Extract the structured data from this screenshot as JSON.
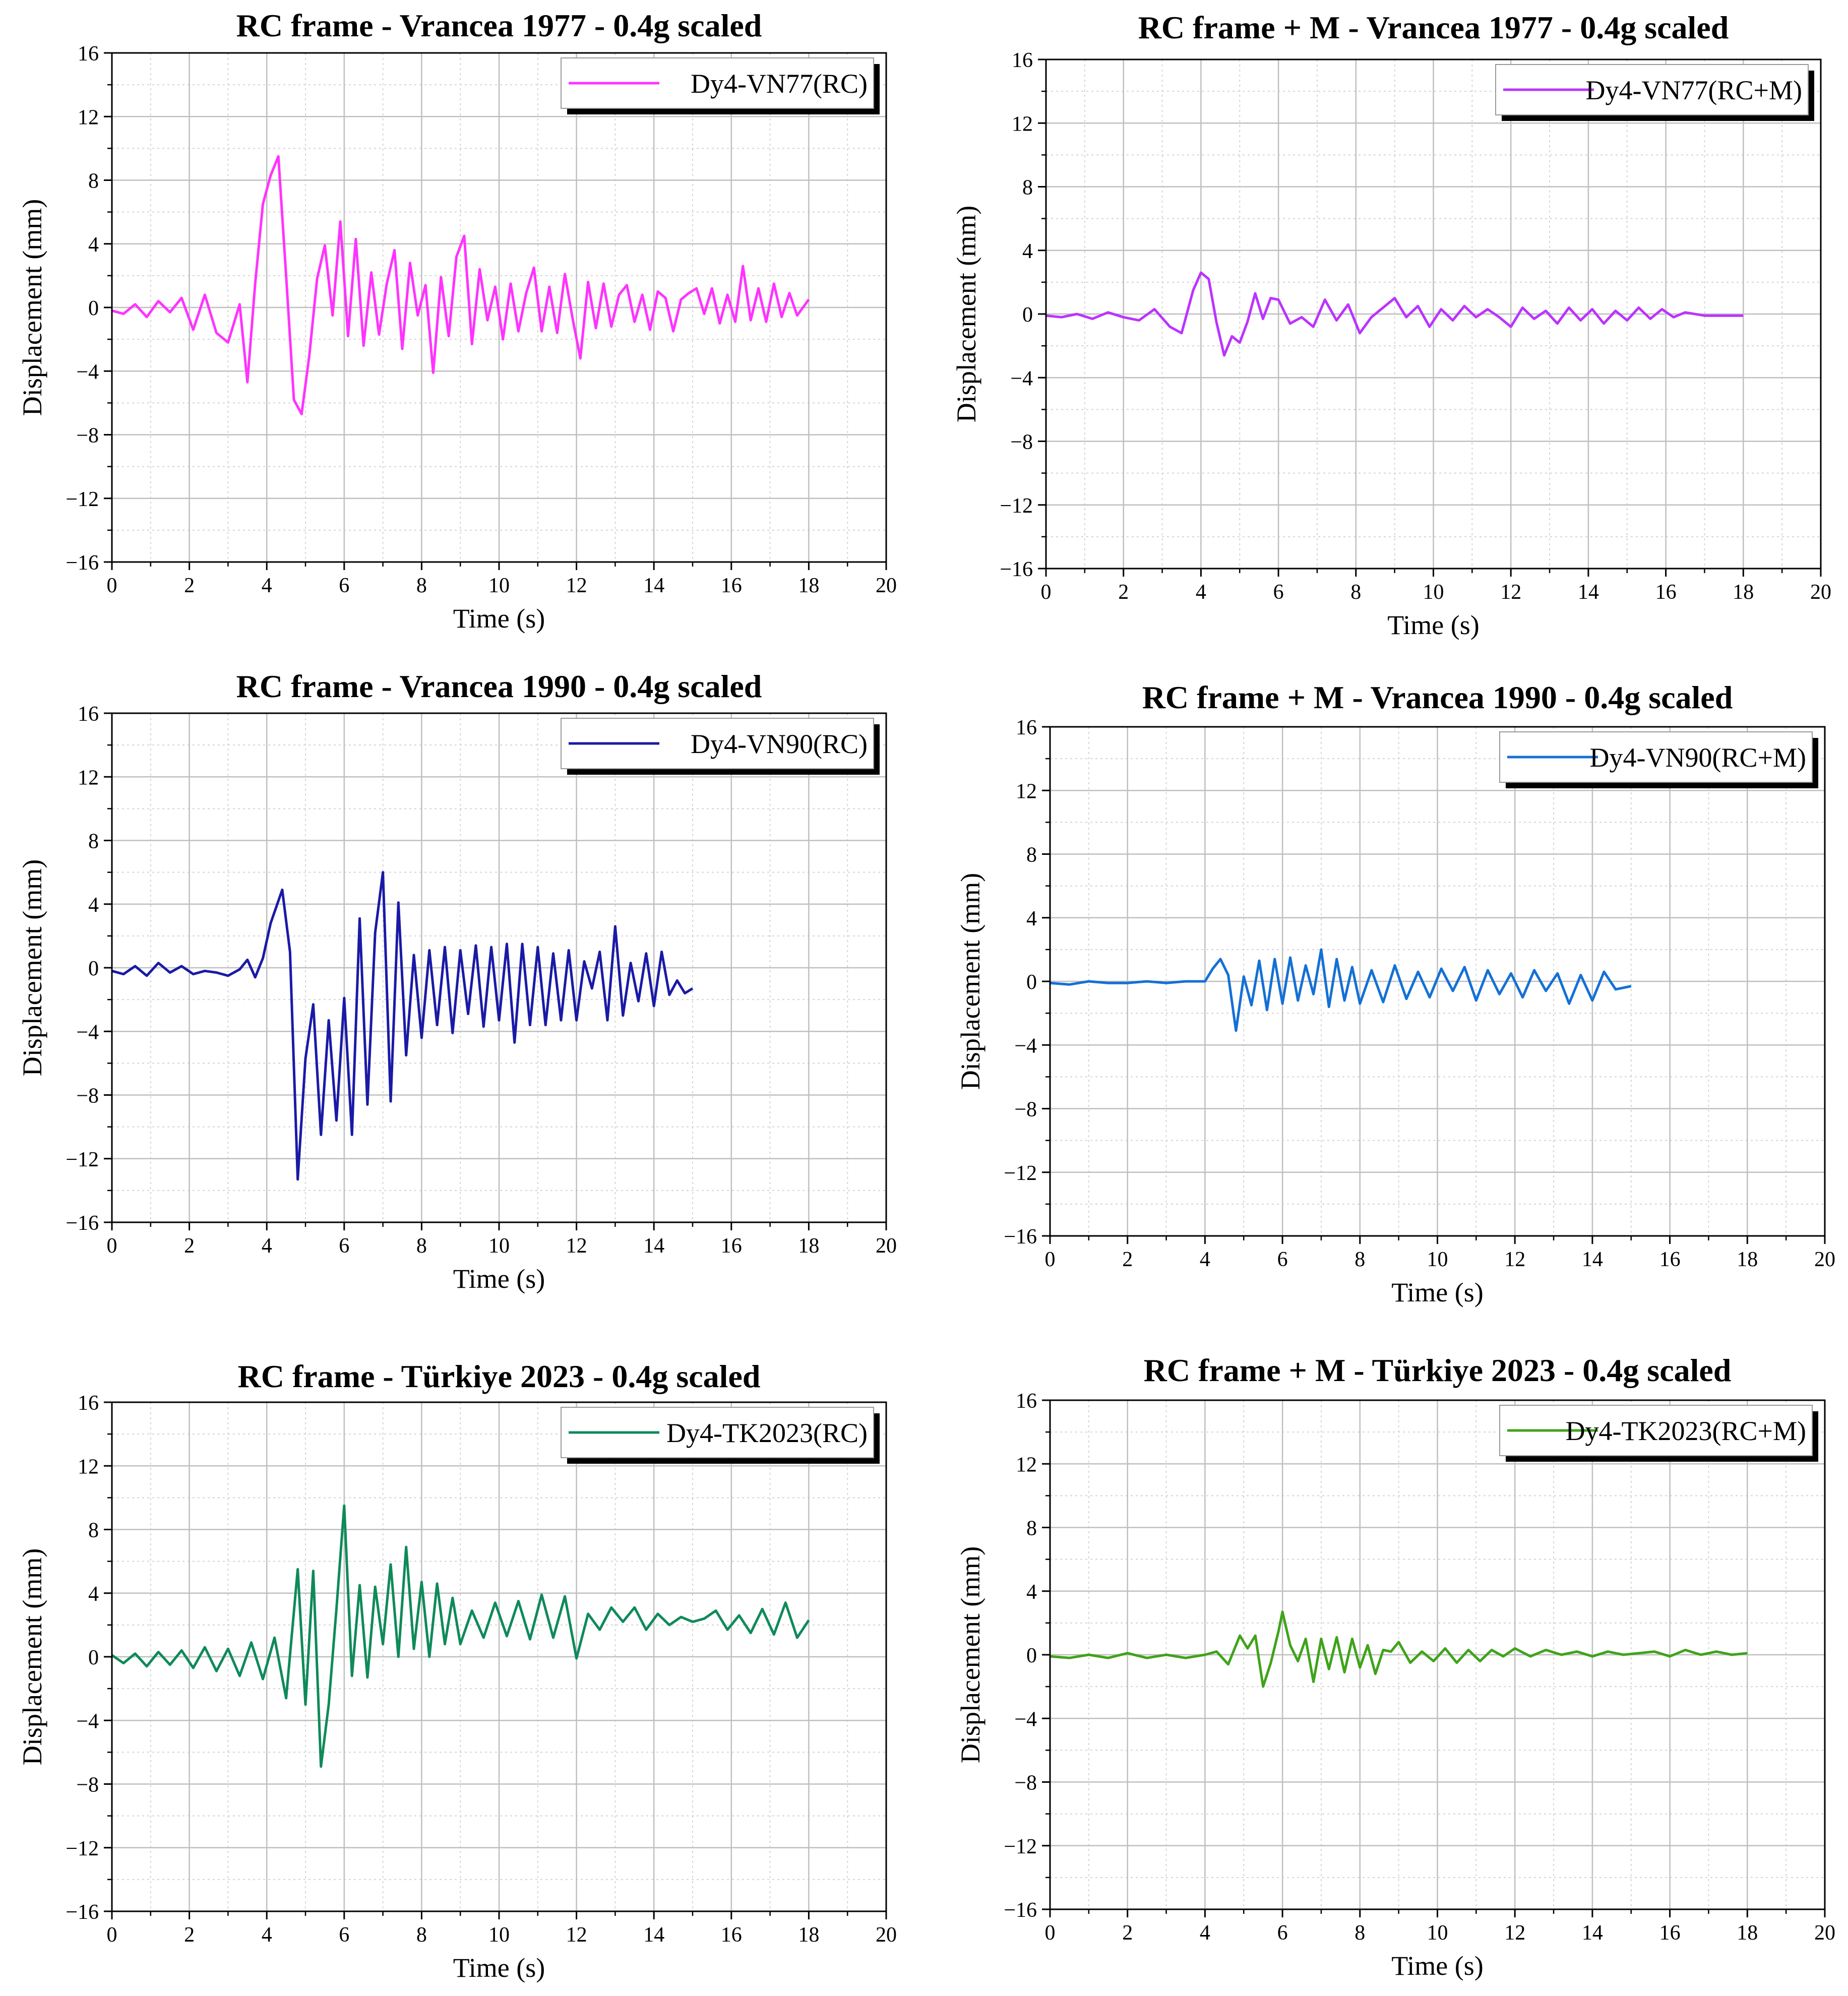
{
  "figure": {
    "background": "#ffffff"
  },
  "chart_data": [
    {
      "type": "line",
      "title": "RC frame - Vrancea 1977 - 0.4g scaled",
      "xlabel": "Time (s)",
      "ylabel": "Displacement (mm)",
      "xlim": [
        0,
        20
      ],
      "ylim": [
        -16,
        16
      ],
      "xticks": [
        0,
        2,
        4,
        6,
        8,
        10,
        12,
        14,
        16,
        18,
        20
      ],
      "yticks": [
        -16,
        -12,
        -8,
        -4,
        0,
        4,
        8,
        12,
        16
      ],
      "grid": true,
      "legend_position": "top-right",
      "series": [
        {
          "name": "Dy4-VN77(RC)",
          "color": "#ff33ff",
          "x": [
            0,
            0.3,
            0.6,
            0.9,
            1.2,
            1.5,
            1.8,
            2.1,
            2.4,
            2.7,
            3.0,
            3.3,
            3.5,
            3.7,
            3.9,
            4.1,
            4.3,
            4.5,
            4.7,
            4.9,
            5.1,
            5.3,
            5.5,
            5.7,
            5.9,
            6.1,
            6.3,
            6.5,
            6.7,
            6.9,
            7.1,
            7.3,
            7.5,
            7.7,
            7.9,
            8.1,
            8.3,
            8.5,
            8.7,
            8.9,
            9.1,
            9.3,
            9.5,
            9.7,
            9.9,
            10.1,
            10.3,
            10.5,
            10.7,
            10.9,
            11.1,
            11.3,
            11.5,
            11.7,
            11.9,
            12.1,
            12.3,
            12.5,
            12.7,
            12.9,
            13.1,
            13.3,
            13.5,
            13.7,
            13.9,
            14.1,
            14.3,
            14.5,
            14.7,
            14.9,
            15.1,
            15.3,
            15.5,
            15.7,
            15.9,
            16.1,
            16.3,
            16.5,
            16.7,
            16.9,
            17.1,
            17.3,
            17.5,
            17.7,
            18.0
          ],
          "y": [
            -0.2,
            -0.4,
            0.2,
            -0.6,
            0.4,
            -0.3,
            0.6,
            -1.4,
            0.8,
            -1.6,
            -2.2,
            0.2,
            -4.7,
            1.5,
            6.5,
            8.3,
            9.5,
            2.0,
            -5.8,
            -6.7,
            -3.0,
            1.8,
            3.9,
            -0.5,
            5.4,
            -1.8,
            4.3,
            -2.4,
            2.2,
            -1.7,
            1.5,
            3.6,
            -2.6,
            2.8,
            -0.5,
            1.4,
            -4.1,
            1.9,
            -1.8,
            3.2,
            4.5,
            -2.3,
            2.4,
            -0.8,
            1.3,
            -2.0,
            1.5,
            -1.5,
            0.9,
            2.5,
            -1.5,
            1.3,
            -1.6,
            2.1,
            -0.7,
            -3.2,
            1.6,
            -1.3,
            1.5,
            -1.2,
            0.8,
            1.4,
            -0.9,
            0.8,
            -1.4,
            1.0,
            0.6,
            -1.5,
            0.5,
            0.9,
            1.2,
            -0.4,
            1.2,
            -1.0,
            0.8,
            -0.9,
            2.6,
            -0.8,
            1.2,
            -0.9,
            1.5,
            -0.6,
            0.9,
            -0.5,
            0.5
          ]
        }
      ]
    },
    {
      "type": "line",
      "title": "RC frame + M - Vrancea 1977 - 0.4g scaled",
      "xlabel": "Time (s)",
      "ylabel": "Displacement (mm)",
      "xlim": [
        0,
        20
      ],
      "ylim": [
        -16,
        16
      ],
      "xticks": [
        0,
        2,
        4,
        6,
        8,
        10,
        12,
        14,
        16,
        18,
        20
      ],
      "yticks": [
        -16,
        -12,
        -8,
        -4,
        0,
        4,
        8,
        12,
        16
      ],
      "grid": true,
      "legend_position": "top-right",
      "series": [
        {
          "name": "Dy4-VN77(RC+M)",
          "color": "#bb33ff",
          "x": [
            0,
            0.4,
            0.8,
            1.2,
            1.6,
            2.0,
            2.4,
            2.8,
            3.2,
            3.5,
            3.8,
            4.0,
            4.2,
            4.4,
            4.6,
            4.8,
            5.0,
            5.2,
            5.4,
            5.6,
            5.8,
            6.0,
            6.3,
            6.6,
            6.9,
            7.2,
            7.5,
            7.8,
            8.1,
            8.4,
            8.7,
            9.0,
            9.3,
            9.6,
            9.9,
            10.2,
            10.5,
            10.8,
            11.1,
            11.4,
            11.7,
            12.0,
            12.3,
            12.6,
            12.9,
            13.2,
            13.5,
            13.8,
            14.1,
            14.4,
            14.7,
            15.0,
            15.3,
            15.6,
            15.9,
            16.2,
            16.5,
            17.0,
            17.5,
            18.0
          ],
          "y": [
            -0.1,
            -0.2,
            0.0,
            -0.3,
            0.1,
            -0.2,
            -0.4,
            0.3,
            -0.8,
            -1.2,
            1.5,
            2.6,
            2.2,
            -0.5,
            -2.6,
            -1.4,
            -1.8,
            -0.5,
            1.3,
            -0.3,
            1.0,
            0.9,
            -0.6,
            -0.2,
            -0.8,
            0.9,
            -0.4,
            0.6,
            -1.2,
            -0.2,
            0.4,
            1.0,
            -0.2,
            0.5,
            -0.8,
            0.3,
            -0.4,
            0.5,
            -0.2,
            0.3,
            -0.2,
            -0.8,
            0.4,
            -0.3,
            0.2,
            -0.6,
            0.4,
            -0.4,
            0.3,
            -0.6,
            0.2,
            -0.4,
            0.4,
            -0.3,
            0.3,
            -0.2,
            0.1,
            -0.1,
            -0.1,
            -0.1
          ]
        }
      ]
    },
    {
      "type": "line",
      "title": "RC frame - Vrancea 1990 - 0.4g scaled",
      "xlabel": "Time (s)",
      "ylabel": "Displacement (mm)",
      "xlim": [
        0,
        20
      ],
      "ylim": [
        -16,
        16
      ],
      "xticks": [
        0,
        2,
        4,
        6,
        8,
        10,
        12,
        14,
        16,
        18,
        20
      ],
      "yticks": [
        -16,
        -12,
        -8,
        -4,
        0,
        4,
        8,
        12,
        16
      ],
      "grid": true,
      "legend_position": "top-right",
      "series": [
        {
          "name": "Dy4-VN90(RC)",
          "color": "#1a1aa6",
          "x": [
            0,
            0.3,
            0.6,
            0.9,
            1.2,
            1.5,
            1.8,
            2.1,
            2.4,
            2.7,
            3.0,
            3.3,
            3.5,
            3.7,
            3.9,
            4.1,
            4.4,
            4.6,
            4.8,
            5.0,
            5.2,
            5.4,
            5.6,
            5.8,
            6.0,
            6.2,
            6.4,
            6.6,
            6.8,
            7.0,
            7.2,
            7.4,
            7.6,
            7.8,
            8.0,
            8.2,
            8.4,
            8.6,
            8.8,
            9.0,
            9.2,
            9.4,
            9.6,
            9.8,
            10.0,
            10.2,
            10.4,
            10.6,
            10.8,
            11.0,
            11.2,
            11.4,
            11.6,
            11.8,
            12.0,
            12.2,
            12.4,
            12.6,
            12.8,
            13.0,
            13.2,
            13.4,
            13.6,
            13.8,
            14.0,
            14.2,
            14.4,
            14.6,
            14.8,
            15.0
          ],
          "y": [
            -0.2,
            -0.4,
            0.1,
            -0.5,
            0.3,
            -0.3,
            0.1,
            -0.4,
            -0.2,
            -0.3,
            -0.5,
            -0.1,
            0.5,
            -0.6,
            0.6,
            2.8,
            4.9,
            1.0,
            -13.3,
            -5.7,
            -2.3,
            -10.5,
            -3.3,
            -9.6,
            -1.9,
            -10.5,
            3.1,
            -8.6,
            2.2,
            6.0,
            -8.4,
            4.1,
            -5.5,
            0.8,
            -4.4,
            1.1,
            -3.6,
            1.3,
            -4.1,
            1.1,
            -2.9,
            1.4,
            -3.7,
            1.3,
            -3.3,
            1.5,
            -4.7,
            1.5,
            -3.6,
            1.3,
            -3.6,
            0.9,
            -3.3,
            1.1,
            -3.3,
            0.4,
            -1.3,
            1.0,
            -3.3,
            2.6,
            -3.0,
            0.3,
            -2.1,
            0.9,
            -2.4,
            1.0,
            -1.7,
            -0.8,
            -1.6,
            -1.3
          ]
        }
      ]
    },
    {
      "type": "line",
      "title": "RC frame + M - Vrancea 1990 - 0.4g scaled",
      "xlabel": "Time (s)",
      "ylabel": "Displacement (mm)",
      "xlim": [
        0,
        20
      ],
      "ylim": [
        -16,
        16
      ],
      "xticks": [
        0,
        2,
        4,
        6,
        8,
        10,
        12,
        14,
        16,
        18,
        20
      ],
      "yticks": [
        -16,
        -12,
        -8,
        -4,
        0,
        4,
        8,
        12,
        16
      ],
      "grid": true,
      "legend_position": "top-right",
      "series": [
        {
          "name": "Dy4-VN90(RC+M)",
          "color": "#1470d6",
          "x": [
            0,
            0.5,
            1.0,
            1.5,
            2.0,
            2.5,
            3.0,
            3.5,
            4.0,
            4.2,
            4.4,
            4.6,
            4.8,
            5.0,
            5.2,
            5.4,
            5.6,
            5.8,
            6.0,
            6.2,
            6.4,
            6.6,
            6.8,
            7.0,
            7.2,
            7.4,
            7.6,
            7.8,
            8.0,
            8.3,
            8.6,
            8.9,
            9.2,
            9.5,
            9.8,
            10.1,
            10.4,
            10.7,
            11.0,
            11.3,
            11.6,
            11.9,
            12.2,
            12.5,
            12.8,
            13.1,
            13.4,
            13.7,
            14.0,
            14.3,
            14.6,
            15.0
          ],
          "y": [
            -0.1,
            -0.2,
            0.0,
            -0.1,
            -0.1,
            0.0,
            -0.1,
            0.0,
            0.0,
            0.8,
            1.4,
            0.4,
            -3.1,
            0.3,
            -1.5,
            1.3,
            -1.8,
            1.4,
            -1.4,
            1.5,
            -1.2,
            1.0,
            -0.8,
            2.0,
            -1.6,
            1.4,
            -1.2,
            0.9,
            -1.4,
            0.7,
            -1.3,
            1.0,
            -1.1,
            0.6,
            -1.0,
            0.8,
            -0.6,
            0.9,
            -1.2,
            0.7,
            -0.8,
            0.5,
            -1.0,
            0.7,
            -0.6,
            0.5,
            -1.4,
            0.4,
            -1.2,
            0.6,
            -0.5,
            -0.3
          ]
        }
      ]
    },
    {
      "type": "line",
      "title": "RC frame - Türkiye 2023 - 0.4g scaled",
      "xlabel": "Time (s)",
      "ylabel": "Displacement (mm)",
      "xlim": [
        0,
        20
      ],
      "ylim": [
        -16,
        16
      ],
      "xticks": [
        0,
        2,
        4,
        6,
        8,
        10,
        12,
        14,
        16,
        18,
        20
      ],
      "yticks": [
        -16,
        -12,
        -8,
        -4,
        0,
        4,
        8,
        12,
        16
      ],
      "grid": true,
      "legend_position": "top-right",
      "series": [
        {
          "name": "Dy4-TK2023(RC)",
          "color": "#0f8a5a",
          "x": [
            0,
            0.3,
            0.6,
            0.9,
            1.2,
            1.5,
            1.8,
            2.1,
            2.4,
            2.7,
            3.0,
            3.3,
            3.6,
            3.9,
            4.2,
            4.5,
            4.8,
            5.0,
            5.2,
            5.4,
            5.6,
            5.8,
            6.0,
            6.2,
            6.4,
            6.6,
            6.8,
            7.0,
            7.2,
            7.4,
            7.6,
            7.8,
            8.0,
            8.2,
            8.4,
            8.6,
            8.8,
            9.0,
            9.3,
            9.6,
            9.9,
            10.2,
            10.5,
            10.8,
            11.1,
            11.4,
            11.7,
            12.0,
            12.3,
            12.6,
            12.9,
            13.2,
            13.5,
            13.8,
            14.1,
            14.4,
            14.7,
            15.0,
            15.3,
            15.6,
            15.9,
            16.2,
            16.5,
            16.8,
            17.1,
            17.4,
            17.7,
            18.0
          ],
          "y": [
            0.1,
            -0.4,
            0.2,
            -0.6,
            0.3,
            -0.5,
            0.4,
            -0.7,
            0.6,
            -0.9,
            0.5,
            -1.2,
            0.9,
            -1.4,
            1.2,
            -2.6,
            5.5,
            -3.0,
            5.4,
            -6.9,
            -3.0,
            3.0,
            9.5,
            -1.2,
            4.5,
            -1.3,
            4.4,
            0.8,
            5.8,
            0.0,
            6.9,
            0.5,
            4.7,
            0.0,
            4.6,
            0.8,
            3.7,
            0.8,
            2.9,
            1.2,
            3.4,
            1.3,
            3.5,
            1.1,
            3.9,
            1.2,
            3.8,
            -0.1,
            2.7,
            1.7,
            3.1,
            2.2,
            3.1,
            1.7,
            2.7,
            2.0,
            2.5,
            2.2,
            2.4,
            2.9,
            1.7,
            2.6,
            1.5,
            3.0,
            1.4,
            3.4,
            1.2,
            2.3
          ]
        }
      ]
    },
    {
      "type": "line",
      "title": "RC frame + M - Türkiye 2023 - 0.4g scaled",
      "xlabel": "Time (s)",
      "ylabel": "Displacement (mm)",
      "xlim": [
        0,
        20
      ],
      "ylim": [
        -16,
        16
      ],
      "xticks": [
        0,
        2,
        4,
        6,
        8,
        10,
        12,
        14,
        16,
        18,
        20
      ],
      "yticks": [
        -16,
        -12,
        -8,
        -4,
        0,
        4,
        8,
        12,
        16
      ],
      "grid": true,
      "legend_position": "top-right",
      "series": [
        {
          "name": "Dy4-TK2023(RC+M)",
          "color": "#3fa31a",
          "x": [
            0,
            0.5,
            1.0,
            1.5,
            2.0,
            2.5,
            3.0,
            3.5,
            4.0,
            4.3,
            4.6,
            4.9,
            5.1,
            5.3,
            5.5,
            5.7,
            5.9,
            6.0,
            6.2,
            6.4,
            6.6,
            6.8,
            7.0,
            7.2,
            7.4,
            7.6,
            7.8,
            8.0,
            8.2,
            8.4,
            8.6,
            8.8,
            9.0,
            9.3,
            9.6,
            9.9,
            10.2,
            10.5,
            10.8,
            11.1,
            11.4,
            11.7,
            12.0,
            12.4,
            12.8,
            13.2,
            13.6,
            14.0,
            14.4,
            14.8,
            15.2,
            15.6,
            16.0,
            16.4,
            16.8,
            17.2,
            17.6,
            18.0
          ],
          "y": [
            -0.1,
            -0.2,
            0.0,
            -0.2,
            0.1,
            -0.2,
            0.0,
            -0.2,
            0.0,
            0.2,
            -0.6,
            1.2,
            0.4,
            1.2,
            -2.0,
            -0.5,
            1.5,
            2.7,
            0.6,
            -0.4,
            1.0,
            -1.7,
            1.0,
            -0.9,
            1.1,
            -1.1,
            1.0,
            -0.8,
            0.6,
            -1.2,
            0.3,
            0.2,
            0.8,
            -0.5,
            0.2,
            -0.4,
            0.4,
            -0.5,
            0.3,
            -0.4,
            0.3,
            -0.1,
            0.4,
            -0.1,
            0.3,
            0.0,
            0.2,
            -0.1,
            0.2,
            0.0,
            0.1,
            0.2,
            -0.1,
            0.3,
            0.0,
            0.2,
            0.0,
            0.1
          ]
        }
      ]
    }
  ]
}
